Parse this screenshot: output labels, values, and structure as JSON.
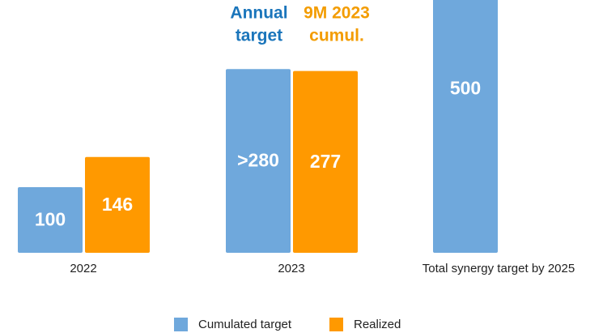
{
  "chart_data": {
    "type": "bar",
    "categories": [
      "2022",
      "2023",
      "Total synergy target by 2025"
    ],
    "series": [
      {
        "name": "Cumulated target",
        "color": "#6fa8dc",
        "values": [
          100,
          280,
          500
        ],
        "value_labels": [
          "100",
          ">280",
          "500"
        ]
      },
      {
        "name": "Realized",
        "color": "#ff9900",
        "values": [
          146,
          277,
          null
        ]
      }
    ],
    "annotations": [
      {
        "lines": [
          "Annual",
          "target"
        ],
        "color": "#1a75bb"
      },
      {
        "lines": [
          "9M 2023",
          "cumul."
        ],
        "color": "#f39c00"
      }
    ]
  }
}
